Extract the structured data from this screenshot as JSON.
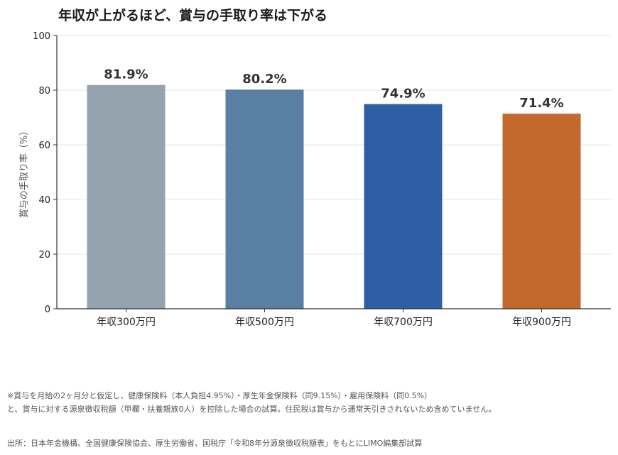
{
  "title": "年収が上がるほど、賞与の手取り率は下がる",
  "chart_data": {
    "type": "bar",
    "title": "年収が上がるほど、賞与の手取り率は下がる",
    "xlabel": "",
    "ylabel": "賞与の手取り率（%）",
    "ylim": [
      0,
      100
    ],
    "yticks": [
      0,
      20,
      40,
      60,
      80,
      100
    ],
    "categories": [
      "年収300万円",
      "年収500万円",
      "年収700万円",
      "年収900万円"
    ],
    "values": [
      81.9,
      80.2,
      74.9,
      71.4
    ],
    "value_labels": [
      "81.9%",
      "80.2%",
      "74.9%",
      "71.4%"
    ],
    "colors": [
      "#94a3ae",
      "#5a7fa5",
      "#2e5ea5",
      "#c4692e"
    ],
    "grid": true,
    "legend": "none"
  },
  "notes": {
    "line1": "※賞与を月給の2ヶ月分と仮定し、健康保険料（本人負担4.95%）・厚生年金保険料（同9.15%）・雇用保険料（同0.5%）",
    "line2": "と、賞与に対する源泉徴収税額（甲欄・扶養親族0人）を控除した場合の試算。住民税は賞与から通常天引きされないため含めていません。",
    "source": "出所：日本年金機構、全国健康保険協会、厚生労働省、国税庁「令和8年分源泉徴収税額表」をもとにLIMO編集部試算"
  }
}
